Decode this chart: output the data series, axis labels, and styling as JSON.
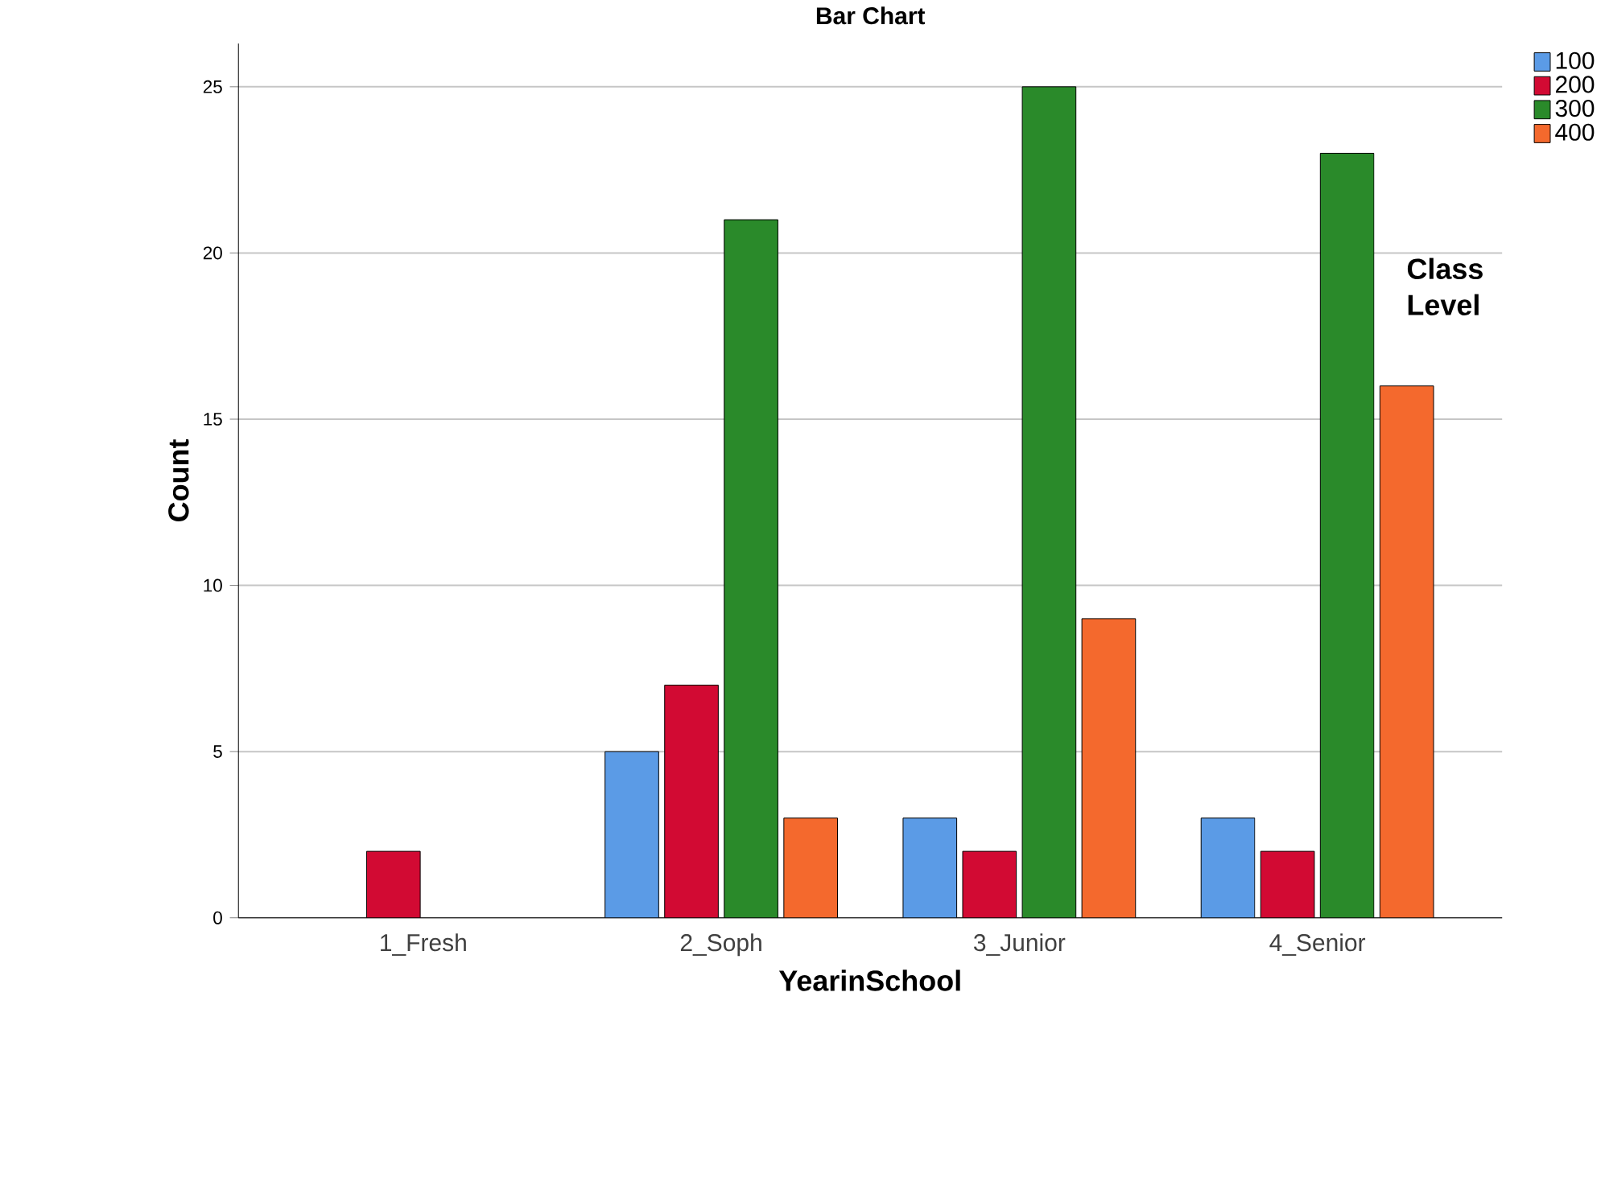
{
  "chart_data": {
    "type": "bar",
    "title": "Bar Chart",
    "xlabel": "YearinSchool",
    "ylabel": "Count",
    "legend_title": "Class Level",
    "categories": [
      "1_Fresh",
      "2_Soph",
      "3_Junior",
      "4_Senior"
    ],
    "series": [
      {
        "name": "100",
        "color": "#5b9be6",
        "values": [
          null,
          5,
          3,
          3
        ]
      },
      {
        "name": "200",
        "color": "#d20a33",
        "values": [
          2,
          7,
          2,
          2
        ]
      },
      {
        "name": "300",
        "color": "#2a8a2a",
        "values": [
          null,
          21,
          25,
          23
        ]
      },
      {
        "name": "400",
        "color": "#f4692d",
        "values": [
          null,
          3,
          9,
          16
        ]
      }
    ],
    "ylim": [
      0,
      26.3
    ],
    "yticks": [
      0,
      5,
      10,
      15,
      20,
      25
    ],
    "grid": "y",
    "legend": "top right"
  }
}
